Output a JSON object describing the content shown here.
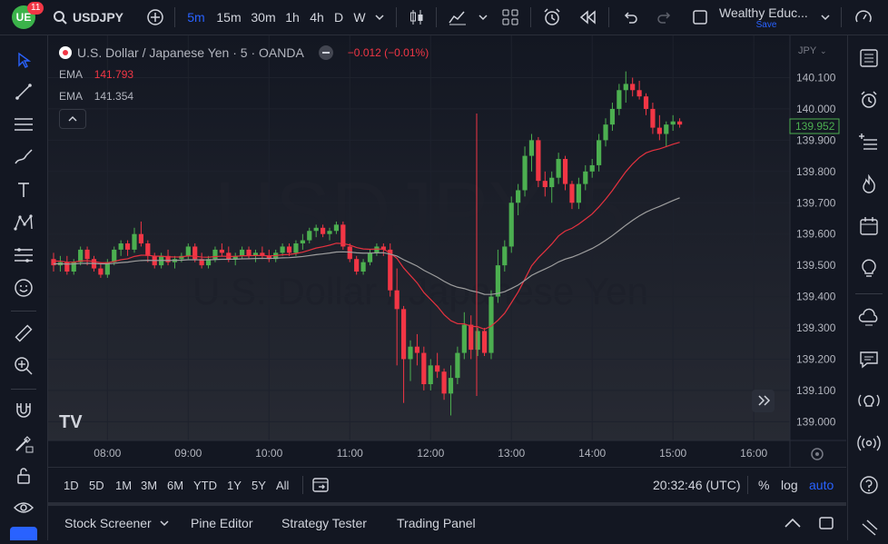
{
  "header": {
    "notification_count": "11",
    "symbol": "USDJPY",
    "intervals": [
      "5m",
      "15m",
      "30m",
      "1h",
      "4h",
      "D",
      "W"
    ],
    "active_interval": "5m",
    "layout_name": "Wealthy Educ...",
    "save_label": "Save"
  },
  "legend": {
    "title": "U.S. Dollar / Japanese Yen · 5 · OANDA",
    "change": "−0.012 (−0.01%)",
    "ema1_label": "EMA",
    "ema1_value": "141.793",
    "ema2_label": "EMA",
    "ema2_value": "141.354"
  },
  "watermark": {
    "line1": "USDJPY, 5",
    "line2": "U.S. Dollar / Japanese Yen"
  },
  "price_axis": {
    "currency": "JPY",
    "current_price": "139.952"
  },
  "time_axis_labels": [
    "08:00",
    "09:00",
    "10:00",
    "11:00",
    "12:00",
    "13:00",
    "14:00",
    "15:00",
    "16:00"
  ],
  "colors": {
    "up": "#26a69a",
    "up_bright": "#4caf50",
    "down": "#f23645",
    "ema_fast": "#e5323f",
    "ema_slow": "#9e9e9e",
    "accent": "#2962ff"
  },
  "ranges": [
    "1D",
    "5D",
    "1M",
    "3M",
    "6M",
    "YTD",
    "1Y",
    "5Y",
    "All"
  ],
  "bottom": {
    "clock": "20:32:46 (UTC)",
    "percent_label": "%",
    "log_label": "log",
    "auto_label": "auto"
  },
  "panels": {
    "stock_screener": "Stock Screener",
    "pine_editor": "Pine Editor",
    "strategy_tester": "Strategy Tester",
    "trading_panel": "Trading Panel"
  },
  "chart_data": {
    "type": "candlestick",
    "y_ticks": [
      140.1,
      140.0,
      139.9,
      139.8,
      139.7,
      139.6,
      139.5,
      139.4,
      139.3,
      139.2,
      139.1,
      139.0
    ],
    "y_tick_labels": [
      "140.100",
      "140.000",
      "139.900",
      "139.800",
      "139.700",
      "139.600",
      "139.500",
      "139.400",
      "139.300",
      "139.200",
      "139.100",
      "139.000"
    ],
    "ylim": [
      138.94,
      140.235
    ],
    "x_labels": [
      "08:00",
      "09:00",
      "10:00",
      "11:00",
      "12:00",
      "13:00",
      "14:00",
      "15:00",
      "16:00"
    ],
    "x_label_index": [
      8,
      20,
      32,
      44,
      56,
      68,
      80,
      92,
      104
    ],
    "candles_ohlc": [
      [
        139.52,
        139.54,
        139.48,
        139.5
      ],
      [
        139.5,
        139.53,
        139.48,
        139.51
      ],
      [
        139.51,
        139.53,
        139.47,
        139.48
      ],
      [
        139.48,
        139.52,
        139.47,
        139.51
      ],
      [
        139.51,
        139.56,
        139.5,
        139.55
      ],
      [
        139.55,
        139.56,
        139.5,
        139.52
      ],
      [
        139.52,
        139.53,
        139.48,
        139.49
      ],
      [
        139.49,
        139.51,
        139.46,
        139.47
      ],
      [
        139.47,
        139.52,
        139.46,
        139.51
      ],
      [
        139.51,
        139.56,
        139.5,
        139.55
      ],
      [
        139.55,
        139.58,
        139.53,
        139.57
      ],
      [
        139.57,
        139.58,
        139.53,
        139.55
      ],
      [
        139.55,
        139.62,
        139.54,
        139.6
      ],
      [
        139.6,
        139.64,
        139.56,
        139.57
      ],
      [
        139.57,
        139.58,
        139.51,
        139.53
      ],
      [
        139.53,
        139.54,
        139.49,
        139.5
      ],
      [
        139.5,
        139.54,
        139.49,
        139.53
      ],
      [
        139.53,
        139.55,
        139.5,
        139.51
      ],
      [
        139.51,
        139.53,
        139.49,
        139.52
      ],
      [
        139.52,
        139.54,
        139.51,
        139.53
      ],
      [
        139.53,
        139.57,
        139.52,
        139.56
      ],
      [
        139.56,
        139.57,
        139.51,
        139.52
      ],
      [
        139.52,
        139.54,
        139.49,
        139.5
      ],
      [
        139.5,
        139.53,
        139.49,
        139.52
      ],
      [
        139.52,
        139.56,
        139.51,
        139.55
      ],
      [
        139.55,
        139.57,
        139.53,
        139.54
      ],
      [
        139.54,
        139.56,
        139.51,
        139.52
      ],
      [
        139.52,
        139.54,
        139.5,
        139.53
      ],
      [
        139.53,
        139.56,
        139.52,
        139.55
      ],
      [
        139.55,
        139.56,
        139.52,
        139.53
      ],
      [
        139.53,
        139.55,
        139.51,
        139.54
      ],
      [
        139.54,
        139.56,
        139.52,
        139.53
      ],
      [
        139.53,
        139.55,
        139.51,
        139.52
      ],
      [
        139.52,
        139.55,
        139.51,
        139.54
      ],
      [
        139.54,
        139.57,
        139.53,
        139.56
      ],
      [
        139.56,
        139.57,
        139.53,
        139.54
      ],
      [
        139.54,
        139.58,
        139.53,
        139.57
      ],
      [
        139.57,
        139.6,
        139.55,
        139.58
      ],
      [
        139.58,
        139.62,
        139.57,
        139.61
      ],
      [
        139.61,
        139.63,
        139.59,
        139.62
      ],
      [
        139.62,
        139.63,
        139.59,
        139.6
      ],
      [
        139.6,
        139.62,
        139.58,
        139.61
      ],
      [
        139.61,
        139.64,
        139.6,
        139.63
      ],
      [
        139.63,
        139.64,
        139.55,
        139.56
      ],
      [
        139.56,
        139.57,
        139.51,
        139.52
      ],
      [
        139.52,
        139.53,
        139.47,
        139.48
      ],
      [
        139.48,
        139.52,
        139.47,
        139.51
      ],
      [
        139.51,
        139.55,
        139.5,
        139.54
      ],
      [
        139.54,
        139.57,
        139.53,
        139.56
      ],
      [
        139.56,
        139.57,
        139.53,
        139.55
      ],
      [
        139.55,
        139.57,
        139.4,
        139.42
      ],
      [
        139.42,
        139.49,
        139.18,
        139.36
      ],
      [
        139.36,
        139.37,
        139.06,
        139.2
      ],
      [
        139.2,
        139.26,
        139.13,
        139.24
      ],
      [
        139.24,
        139.28,
        139.18,
        139.22
      ],
      [
        139.22,
        139.24,
        139.1,
        139.12
      ],
      [
        139.12,
        139.2,
        139.1,
        139.18
      ],
      [
        139.18,
        139.22,
        139.14,
        139.16
      ],
      [
        139.16,
        139.17,
        139.07,
        139.09
      ],
      [
        139.09,
        139.18,
        139.02,
        139.14
      ],
      [
        139.14,
        139.24,
        139.12,
        139.22
      ],
      [
        139.22,
        139.35,
        139.2,
        139.31
      ],
      [
        139.31,
        139.34,
        139.2,
        139.23
      ],
      [
        139.23,
        139.3,
        139.21,
        139.29
      ],
      [
        139.29,
        139.3,
        139.21,
        139.22
      ],
      [
        139.22,
        139.42,
        139.2,
        139.4
      ],
      [
        139.4,
        139.55,
        139.38,
        139.5
      ],
      [
        139.5,
        139.58,
        139.48,
        139.56
      ],
      [
        139.56,
        139.72,
        139.54,
        139.7
      ],
      [
        139.7,
        139.76,
        139.66,
        139.74
      ],
      [
        139.74,
        139.88,
        139.72,
        139.85
      ],
      [
        139.85,
        139.92,
        139.8,
        139.9
      ],
      [
        139.9,
        139.91,
        139.75,
        139.77
      ],
      [
        139.77,
        139.8,
        139.72,
        139.75
      ],
      [
        139.75,
        139.8,
        139.7,
        139.78
      ],
      [
        139.78,
        139.86,
        139.76,
        139.84
      ],
      [
        139.84,
        139.85,
        139.74,
        139.76
      ],
      [
        139.76,
        139.77,
        139.68,
        139.7
      ],
      [
        139.7,
        139.78,
        139.68,
        139.76
      ],
      [
        139.76,
        139.82,
        139.74,
        139.8
      ],
      [
        139.8,
        139.84,
        139.78,
        139.82
      ],
      [
        139.82,
        139.92,
        139.8,
        139.9
      ],
      [
        139.9,
        139.97,
        139.88,
        139.95
      ],
      [
        139.95,
        140.02,
        139.93,
        140.0
      ],
      [
        140.0,
        140.08,
        139.98,
        140.06
      ],
      [
        140.06,
        140.12,
        140.02,
        140.08
      ],
      [
        140.08,
        140.1,
        140.04,
        140.06
      ],
      [
        140.06,
        140.09,
        140.03,
        140.04
      ],
      [
        140.04,
        140.05,
        139.98,
        140.0
      ],
      [
        140.0,
        140.02,
        139.92,
        139.94
      ],
      [
        139.94,
        139.98,
        139.9,
        139.92
      ],
      [
        139.92,
        139.96,
        139.88,
        139.95
      ],
      [
        139.95,
        139.98,
        139.93,
        139.96
      ],
      [
        139.96,
        139.97,
        139.94,
        139.95
      ]
    ]
  }
}
